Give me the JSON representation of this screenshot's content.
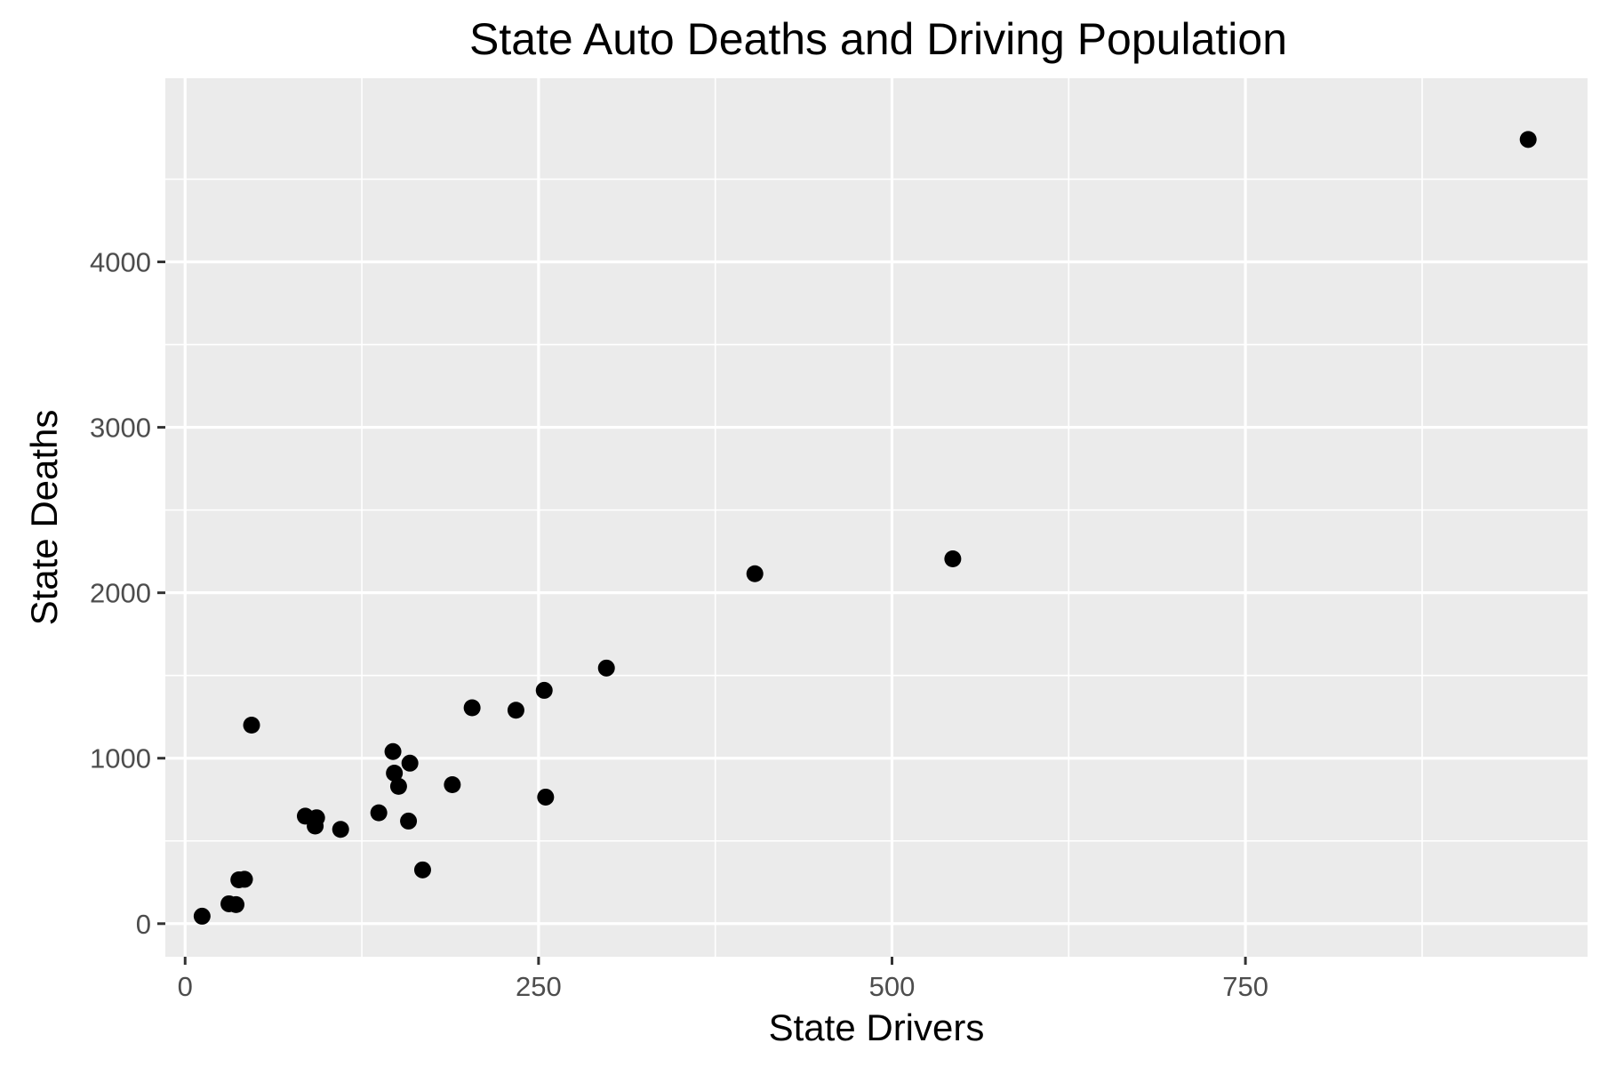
{
  "chart_data": {
    "type": "scatter",
    "title": "State Auto Deaths and Driving Population",
    "xlabel": "State Drivers",
    "ylabel": "State Deaths",
    "xlim": [
      -14,
      992
    ],
    "ylim": [
      -200,
      5110
    ],
    "x_major_ticks": [
      0,
      250,
      500,
      750
    ],
    "x_minor_ticks": [
      125,
      375,
      625,
      875
    ],
    "x_tick_labels": [
      "0",
      "250",
      "500",
      "750"
    ],
    "y_major_ticks": [
      0,
      1000,
      2000,
      3000,
      4000
    ],
    "y_minor_ticks": [
      500,
      1500,
      2500,
      3500,
      4500
    ],
    "y_tick_labels": [
      "0",
      "1000",
      "2000",
      "3000",
      "4000"
    ],
    "grid": true,
    "legend": "none",
    "panel_color": "#ebebeb",
    "grid_color": "#ffffff",
    "point_color": "#000000",
    "points": [
      {
        "x": 12,
        "y": 45
      },
      {
        "x": 31,
        "y": 120
      },
      {
        "x": 36,
        "y": 115
      },
      {
        "x": 38,
        "y": 265
      },
      {
        "x": 42,
        "y": 268
      },
      {
        "x": 47,
        "y": 1200
      },
      {
        "x": 85,
        "y": 650
      },
      {
        "x": 92,
        "y": 590
      },
      {
        "x": 93,
        "y": 640
      },
      {
        "x": 110,
        "y": 570
      },
      {
        "x": 137,
        "y": 670
      },
      {
        "x": 147,
        "y": 1040
      },
      {
        "x": 148,
        "y": 910
      },
      {
        "x": 151,
        "y": 830
      },
      {
        "x": 158,
        "y": 620
      },
      {
        "x": 159,
        "y": 970
      },
      {
        "x": 168,
        "y": 325
      },
      {
        "x": 189,
        "y": 840
      },
      {
        "x": 203,
        "y": 1305
      },
      {
        "x": 234,
        "y": 1290
      },
      {
        "x": 254,
        "y": 1410
      },
      {
        "x": 255,
        "y": 765
      },
      {
        "x": 298,
        "y": 1545
      },
      {
        "x": 403,
        "y": 2115
      },
      {
        "x": 543,
        "y": 2205
      },
      {
        "x": 950,
        "y": 4740
      }
    ]
  }
}
